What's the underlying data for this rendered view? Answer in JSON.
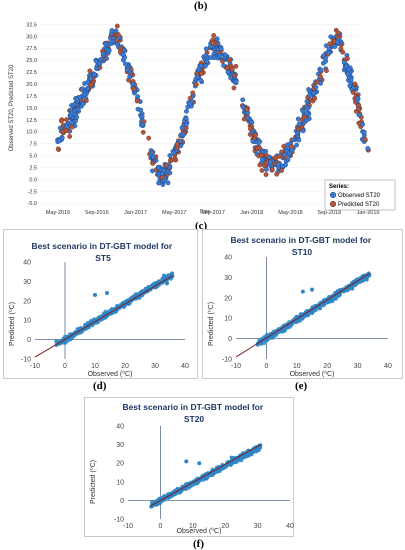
{
  "labels": {
    "b": "(b)",
    "c": "(c)",
    "d": "(d)",
    "e": "(e)",
    "f": "(f)"
  },
  "colors": {
    "observed": "#3a7bd5",
    "predicted": "#b5563c",
    "scatter": "#2e86c8",
    "fit": "#7a1f1f",
    "scatter_axis": "#5a6f8a"
  },
  "chart_data": [
    {
      "type": "line",
      "ylabel": "Observed ST20, Predicted ST20",
      "xlabel": "Date",
      "yticks": [
        "32.5",
        "30.0",
        "27.5",
        "25.0",
        "22.5",
        "20.0",
        "17.5",
        "15.0",
        "12.5",
        "10.0",
        "7.5",
        "5.0",
        "2.5",
        "0.0",
        "-2.5",
        "-5.0"
      ],
      "ylim": [
        -6,
        33
      ],
      "xticks": [
        "May-2016",
        "Sep-2016",
        "Jan-2017",
        "May-2017",
        "Sep-2017",
        "Jan-2018",
        "May-2018",
        "Sep-2018",
        "Jan-2019"
      ],
      "legend_title": "Series:",
      "legend_position": "bottom-right",
      "series": [
        {
          "name": "Observed ST20",
          "key": "observed"
        },
        {
          "name": "Predicted ST20",
          "key": "predicted"
        }
      ],
      "curve": {
        "x_index": [
          0,
          0.5,
          1,
          1.3,
          1.6,
          2,
          2.4,
          2.7,
          3,
          3.3,
          3.6,
          4,
          4.5,
          5,
          5.3,
          5.7,
          6,
          6.4,
          6.8,
          7.2,
          7.6,
          8
        ],
        "y": [
          8,
          15,
          23,
          29,
          29,
          18,
          5,
          0,
          5,
          12,
          22,
          28,
          23,
          10,
          4,
          3,
          6,
          14,
          23,
          30,
          20,
          6
        ]
      }
    },
    {
      "type": "scatter",
      "title": "Best scenario in DT-GBT model for ST5",
      "xlabel": "Observed (⁰C)",
      "ylabel": "Predicted (⁰C)",
      "xticks": [
        "-10",
        "0",
        "10",
        "20",
        "30",
        "40"
      ],
      "yticks": [
        "40",
        "30",
        "20",
        "10",
        "0",
        "-10"
      ],
      "xlim": [
        -10,
        40
      ],
      "ylim": [
        -10,
        40
      ],
      "trend": [
        [
          -10,
          -9
        ],
        [
          36,
          33
        ]
      ],
      "points_range": [
        -3,
        36
      ]
    },
    {
      "type": "scatter",
      "title": "Best scenario in DT-GBT model for ST10",
      "xlabel": "Observed (⁰C)",
      "ylabel": "Predicted (⁰C)",
      "xticks": [
        "-10",
        "0",
        "10",
        "20",
        "30",
        "40"
      ],
      "yticks": [
        "40",
        "30",
        "20",
        "10",
        "0",
        "-10"
      ],
      "xlim": [
        -10,
        40
      ],
      "ylim": [
        -10,
        40
      ],
      "trend": [
        [
          -10,
          -9
        ],
        [
          34,
          32
        ]
      ],
      "points_range": [
        -3,
        34
      ]
    },
    {
      "type": "scatter",
      "title": "Best scenario in DT-GBT model for ST20",
      "xlabel": "Observed (⁰C)",
      "ylabel": "Predicted (⁰C)",
      "xticks": [
        "-10",
        "0",
        "10",
        "20",
        "30",
        "40"
      ],
      "yticks": [
        "40",
        "30",
        "20",
        "10",
        "0",
        "-10"
      ],
      "xlim": [
        -10,
        40
      ],
      "ylim": [
        -10,
        40
      ],
      "trend": [
        [
          -3,
          -3
        ],
        [
          31,
          30
        ]
      ],
      "points_range": [
        -3,
        31
      ]
    }
  ]
}
